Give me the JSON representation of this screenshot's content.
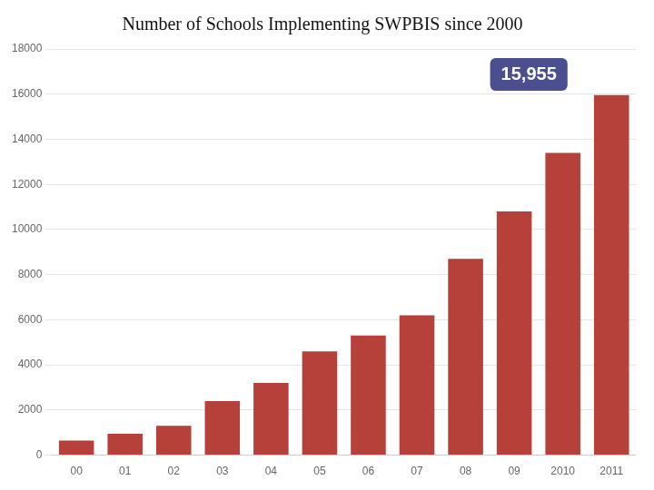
{
  "chart_data": {
    "type": "bar",
    "title": "Number of Schools Implementing SWPBIS since 2000",
    "categories": [
      "00",
      "01",
      "02",
      "03",
      "04",
      "05",
      "06",
      "07",
      "08",
      "09",
      "2010",
      "2011"
    ],
    "values": [
      650,
      950,
      1300,
      2400,
      3200,
      4600,
      5300,
      6200,
      8700,
      10800,
      13400,
      15955
    ],
    "color": "#B5413A",
    "ylim": [
      0,
      18000
    ],
    "yticks": [
      0,
      2000,
      4000,
      6000,
      8000,
      10000,
      12000,
      14000,
      16000,
      18000
    ],
    "grid": true,
    "annotation": "15,955"
  }
}
